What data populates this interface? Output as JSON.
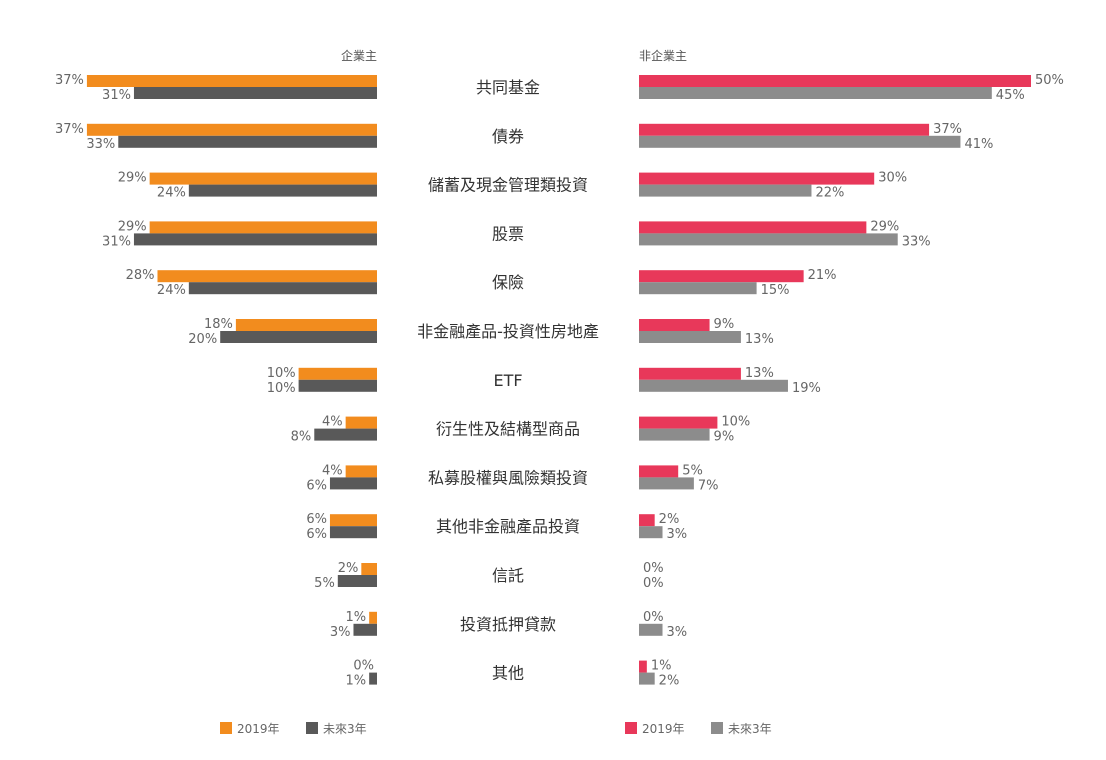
{
  "chart_data": [
    {
      "type": "bar",
      "orientation": "horizontal",
      "title": "企業主",
      "categories": [
        "共同基金",
        "債券",
        "儲蓄及現金管理類投資",
        "股票",
        "保險",
        "非金融產品-投資性房地產",
        "ETF",
        "衍生性及結構型商品",
        "私募股權與風險類投資",
        "其他非金融產品投資",
        "信託",
        "投資抵押貸款",
        "其他"
      ],
      "series": [
        {
          "name": "2019年",
          "color": "#f28c1e",
          "values": [
            37,
            37,
            29,
            29,
            28,
            18,
            10,
            4,
            4,
            6,
            2,
            1,
            0
          ]
        },
        {
          "name": "未來3年",
          "color": "#595959",
          "values": [
            31,
            33,
            24,
            31,
            24,
            20,
            10,
            8,
            6,
            6,
            5,
            3,
            1
          ]
        }
      ],
      "unit": "%",
      "xlim": [
        0,
        50
      ]
    },
    {
      "type": "bar",
      "orientation": "horizontal",
      "title": "非企業主",
      "categories": [
        "共同基金",
        "債券",
        "儲蓄及現金管理類投資",
        "股票",
        "保險",
        "非金融產品-投資性房地產",
        "ETF",
        "衍生性及結構型商品",
        "私募股權與風險類投資",
        "其他非金融產品投資",
        "信託",
        "投資抵押貸款",
        "其他"
      ],
      "series": [
        {
          "name": "2019年",
          "color": "#e8385a",
          "values": [
            50,
            37,
            30,
            29,
            21,
            9,
            13,
            10,
            5,
            2,
            0,
            0,
            1
          ]
        },
        {
          "name": "未來3年",
          "color": "#8c8c8c",
          "values": [
            45,
            41,
            22,
            33,
            15,
            13,
            19,
            9,
            7,
            3,
            0,
            3,
            2
          ]
        }
      ],
      "unit": "%",
      "xlim": [
        0,
        50
      ]
    }
  ]
}
